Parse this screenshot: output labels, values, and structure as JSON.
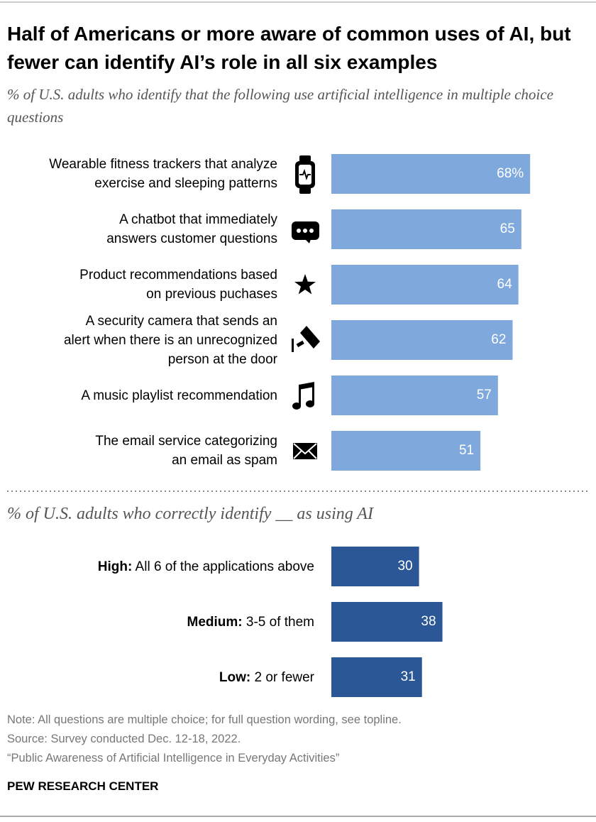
{
  "chart_data": [
    {
      "type": "bar",
      "title": "Half of Americans or more aware of common uses of AI, but fewer can identify AI’s role in all six examples",
      "subtitle": "% of U.S. adults who identify that the following use artificial intelligence in multiple choice questions",
      "categories": [
        "Wearable fitness trackers that analyze\nexercise and sleeping patterns",
        "A chatbot that immediately\nanswers customer questions",
        "Product recommendations based\non previous puchases",
        "A security camera that sends an\nalert when there is an unrecognized\nperson at the door",
        "A music playlist recommendation",
        "The email service categorizing\nan email as spam"
      ],
      "values": [
        68,
        65,
        64,
        62,
        57,
        51
      ],
      "value_labels": [
        "68%",
        "65",
        "64",
        "62",
        "57",
        "51"
      ],
      "color": "#7fa8dc"
    },
    {
      "type": "bar",
      "subtitle": "% of U.S. adults who correctly identify __ as using AI",
      "levels": [
        "High:",
        "Medium:",
        "Low:"
      ],
      "categories": [
        "All 6 of the applications above",
        "3-5 of them",
        "2 or fewer"
      ],
      "values": [
        30,
        38,
        31
      ],
      "color": "#2b5797"
    }
  ],
  "notes": {
    "note": "Note: All questions are multiple choice; for full question wording, see topline.",
    "source": "Source: Survey conducted Dec. 12-18, 2022.",
    "report": "“Public Awareness of Artificial Intelligence in Everyday Activities”"
  },
  "footer": "PEW RESEARCH CENTER"
}
